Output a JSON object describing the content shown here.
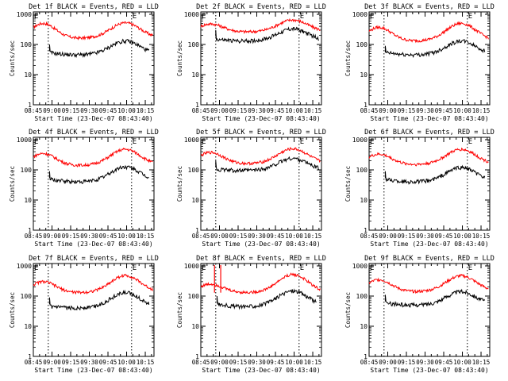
{
  "figure": {
    "panel_titles": [
      "Det 1f BLACK = Events, RED = LLD",
      "Det 2f BLACK = Events, RED = LLD",
      "Det 3f BLACK = Events, RED = LLD",
      "Det 4f BLACK = Events, RED = LLD",
      "Det 5f BLACK = Events, RED = LLD",
      "Det 6f BLACK = Events, RED = LLD",
      "Det 7f BLACK = Events, RED = LLD",
      "Det 8f BLACK = Events, RED = LLD",
      "Det 9f BLACK = Events, RED = LLD"
    ],
    "ylabel": "Counts/sec",
    "xlabel": "Start Time (23-Dec-07 08:43:40)",
    "x_ticks": [
      "08:45",
      "09:00",
      "09:15",
      "09:30",
      "09:45",
      "10:00",
      "10:15"
    ],
    "y_ticks": [
      "1",
      "10",
      "100",
      "1000"
    ],
    "corner_marks": [
      "E",
      "E"
    ]
  },
  "chart_data": {
    "type": "line",
    "scale": "log-y",
    "xunit": "minutes after 08:45",
    "xlim": [
      0,
      97
    ],
    "ylim": [
      1,
      1200
    ],
    "grid": false,
    "event_markers_min": [
      12,
      79
    ],
    "series_colors": {
      "Events": "#000000",
      "LLD": "#ff0000"
    },
    "panels": [
      {
        "name": "Det 1f",
        "lld": {
          "base": 160,
          "p1": 500,
          "p2": 520
        },
        "events": {
          "base": 45,
          "p1": 55,
          "p2": 130,
          "start": 13,
          "jump": 100,
          "end": 78
        }
      },
      {
        "name": "Det 2f",
        "lld": {
          "base": 260,
          "p1": 480,
          "p2": 650,
          "dip": null
        },
        "events": {
          "base": 130,
          "p1": 150,
          "p2": 330,
          "start": 12,
          "jump": 300,
          "end": 80
        }
      },
      {
        "name": "Det 3f",
        "lld": {
          "base": 130,
          "p1": 370,
          "p2": 500
        },
        "events": {
          "base": 45,
          "p1": 55,
          "p2": 130,
          "start": 13,
          "jump": 90,
          "end": 78
        }
      },
      {
        "name": "Det 4f",
        "lld": {
          "base": 140,
          "p1": 350,
          "p2": 480
        },
        "events": {
          "base": 40,
          "p1": 50,
          "p2": 125,
          "start": 13,
          "jump": 90,
          "end": 78
        }
      },
      {
        "name": "Det 5f",
        "lld": {
          "base": 160,
          "p1": 380,
          "p2": 500
        },
        "events": {
          "base": 95,
          "p1": 105,
          "p2": 240,
          "start": 12,
          "jump": 200,
          "end": 80
        }
      },
      {
        "name": "Det 6f",
        "lld": {
          "base": 150,
          "p1": 330,
          "p2": 480
        },
        "events": {
          "base": 40,
          "p1": 50,
          "p2": 120,
          "start": 13,
          "jump": 90,
          "end": 78
        }
      },
      {
        "name": "Det 7f",
        "lld": {
          "base": 130,
          "p1": 300,
          "p2": 480
        },
        "events": {
          "base": 40,
          "p1": 45,
          "p2": 130,
          "start": 13,
          "jump": 90,
          "end": 78
        }
      },
      {
        "name": "Det 8f",
        "lld": {
          "base": 130,
          "p1": 250,
          "p2": 520,
          "spike": true
        },
        "events": {
          "base": 45,
          "p1": 55,
          "p2": 150,
          "start": 13,
          "jump": 100,
          "end": 78
        }
      },
      {
        "name": "Det 9f",
        "lld": {
          "base": 140,
          "p1": 350,
          "p2": 470
        },
        "events": {
          "base": 50,
          "p1": 60,
          "p2": 140,
          "start": 13,
          "jump": 110,
          "end": 78
        }
      }
    ]
  }
}
